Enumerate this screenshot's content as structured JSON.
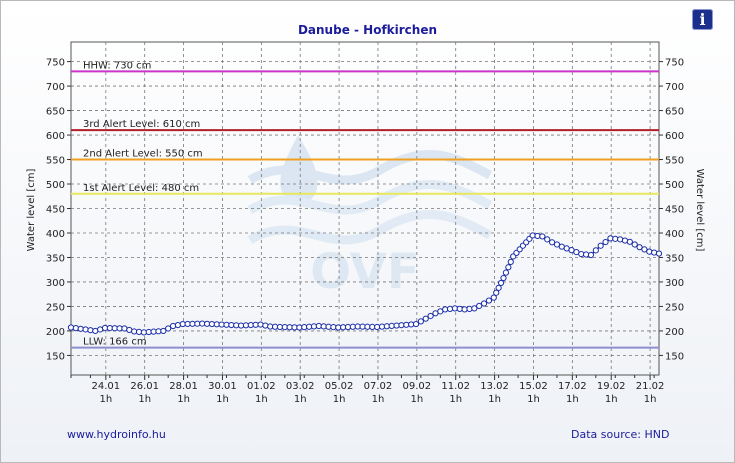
{
  "header": {
    "title": "Danube - Hofkirchen",
    "info_icon": "info-icon"
  },
  "footer": {
    "website": "www.hydroinfo.hu",
    "source": "Data source: HND"
  },
  "watermark": {
    "text": "OVF"
  },
  "colors": {
    "title": "#1c1c9c",
    "series": "#1b2ea8",
    "hhw": "#cc33cc",
    "alert3": "#b01e2a",
    "alert2": "#f0a020",
    "alert1": "#e8e860",
    "llw": "#8d8fd0"
  },
  "chart_data": {
    "type": "line",
    "title": "Danube - Hofkirchen",
    "ylabel": "Water level [cm]",
    "ylabel_right": "Water level [cm]",
    "ylim": [
      110,
      790
    ],
    "yticks": [
      150,
      200,
      250,
      300,
      350,
      400,
      450,
      500,
      550,
      600,
      650,
      700,
      750
    ],
    "grid": true,
    "x_start": "2025-01-22 06:00",
    "x_end": "2025-02-21 12:00",
    "xticks": [
      {
        "date": "24.01",
        "time": "1h"
      },
      {
        "date": "26.01",
        "time": "1h"
      },
      {
        "date": "28.01",
        "time": "1h"
      },
      {
        "date": "30.01",
        "time": "1h"
      },
      {
        "date": "01.02",
        "time": "1h"
      },
      {
        "date": "03.02",
        "time": "1h"
      },
      {
        "date": "05.02",
        "time": "1h"
      },
      {
        "date": "07.02",
        "time": "1h"
      },
      {
        "date": "09.02",
        "time": "1h"
      },
      {
        "date": "11.02",
        "time": "1h"
      },
      {
        "date": "13.02",
        "time": "1h"
      },
      {
        "date": "15.02",
        "time": "1h"
      },
      {
        "date": "17.02",
        "time": "1h"
      },
      {
        "date": "19.02",
        "time": "1h"
      },
      {
        "date": "21.02",
        "time": "1h"
      }
    ],
    "thresholds": [
      {
        "name": "HHW",
        "label": "HHW: 730 cm",
        "value": 730,
        "color": "#cc33cc"
      },
      {
        "name": "3rd Alert Level",
        "label": "3rd Alert Level: 610 cm",
        "value": 610,
        "color": "#b01e2a"
      },
      {
        "name": "2nd Alert Level",
        "label": "2nd Alert Level: 550 cm",
        "value": 550,
        "color": "#f0a020"
      },
      {
        "name": "1st Alert Level",
        "label": "1st Alert Level: 480 cm",
        "value": 480,
        "color": "#e8e860"
      },
      {
        "name": "LLW",
        "label": "LLW: 166 cm",
        "value": 166,
        "color": "#8d8fd0"
      }
    ],
    "series": [
      {
        "values": [
          {
            "x": "2025-01-22 06:00",
            "y": 207
          },
          {
            "x": "2025-01-23 00:00",
            "y": 203
          },
          {
            "x": "2025-01-23 12:00",
            "y": 200
          },
          {
            "x": "2025-01-24 00:00",
            "y": 206
          },
          {
            "x": "2025-01-25 00:00",
            "y": 205
          },
          {
            "x": "2025-01-25 12:00",
            "y": 199
          },
          {
            "x": "2025-01-26 00:00",
            "y": 197
          },
          {
            "x": "2025-01-27 00:00",
            "y": 200
          },
          {
            "x": "2025-01-27 12:00",
            "y": 210
          },
          {
            "x": "2025-01-28 00:00",
            "y": 214
          },
          {
            "x": "2025-01-29 00:00",
            "y": 215
          },
          {
            "x": "2025-01-30 00:00",
            "y": 213
          },
          {
            "x": "2025-01-31 00:00",
            "y": 211
          },
          {
            "x": "2025-02-01 00:00",
            "y": 213
          },
          {
            "x": "2025-02-01 12:00",
            "y": 209
          },
          {
            "x": "2025-02-02 00:00",
            "y": 208
          },
          {
            "x": "2025-02-03 00:00",
            "y": 207
          },
          {
            "x": "2025-02-04 00:00",
            "y": 210
          },
          {
            "x": "2025-02-05 00:00",
            "y": 207
          },
          {
            "x": "2025-02-06 00:00",
            "y": 209
          },
          {
            "x": "2025-02-07 00:00",
            "y": 208
          },
          {
            "x": "2025-02-08 00:00",
            "y": 211
          },
          {
            "x": "2025-02-09 00:00",
            "y": 214
          },
          {
            "x": "2025-02-09 12:00",
            "y": 225
          },
          {
            "x": "2025-02-10 00:00",
            "y": 236
          },
          {
            "x": "2025-02-10 12:00",
            "y": 244
          },
          {
            "x": "2025-02-11 00:00",
            "y": 246
          },
          {
            "x": "2025-02-11 12:00",
            "y": 244
          },
          {
            "x": "2025-02-12 00:00",
            "y": 246
          },
          {
            "x": "2025-02-12 12:00",
            "y": 256
          },
          {
            "x": "2025-02-13 00:00",
            "y": 268
          },
          {
            "x": "2025-02-13 12:00",
            "y": 308
          },
          {
            "x": "2025-02-14 00:00",
            "y": 352
          },
          {
            "x": "2025-02-14 12:00",
            "y": 374
          },
          {
            "x": "2025-02-15 00:00",
            "y": 395
          },
          {
            "x": "2025-02-15 12:00",
            "y": 393
          },
          {
            "x": "2025-02-16 00:00",
            "y": 381
          },
          {
            "x": "2025-02-16 12:00",
            "y": 372
          },
          {
            "x": "2025-02-17 00:00",
            "y": 365
          },
          {
            "x": "2025-02-17 12:00",
            "y": 357
          },
          {
            "x": "2025-02-18 00:00",
            "y": 355
          },
          {
            "x": "2025-02-18 12:00",
            "y": 374
          },
          {
            "x": "2025-02-19 00:00",
            "y": 389
          },
          {
            "x": "2025-02-19 12:00",
            "y": 387
          },
          {
            "x": "2025-02-20 00:00",
            "y": 382
          },
          {
            "x": "2025-02-20 12:00",
            "y": 371
          },
          {
            "x": "2025-02-21 00:00",
            "y": 362
          },
          {
            "x": "2025-02-21 12:00",
            "y": 358
          }
        ]
      }
    ]
  }
}
